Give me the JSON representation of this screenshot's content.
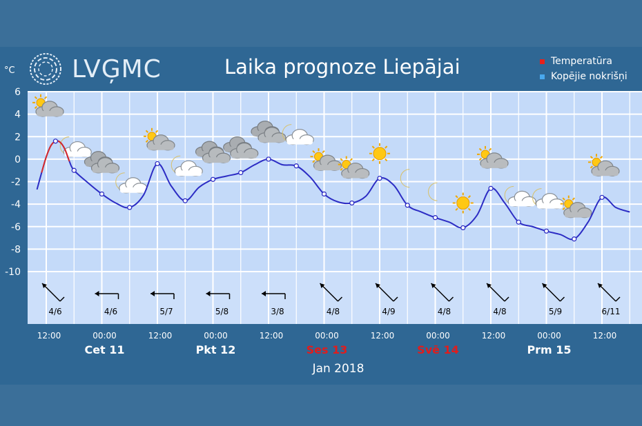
{
  "header": {
    "logo_text": "LVĢMC",
    "title": "Laika prognoze Liepājai",
    "unit": "°C",
    "month_label": "Jan 2018"
  },
  "legend": [
    {
      "label": "Temperatūra",
      "color": "#e8201a"
    },
    {
      "label": "Kopējie nokrišņi",
      "color": "#49a8ee"
    }
  ],
  "colors": {
    "plot_background": "#c4daf9",
    "wind_background": "#ccdffa",
    "temperature_line": "#2c2cc4",
    "temperature_line_past": "#d82a2a",
    "weekend_day_label": "#e01d1d"
  },
  "chart_data": {
    "type": "line",
    "title": "Laika prognoze Liepājai",
    "ylabel": "°C",
    "ylim": [
      -10,
      6
    ],
    "y_ticks": [
      6,
      4,
      2,
      0,
      -2,
      -4,
      -6,
      -8,
      -10
    ],
    "grid": true,
    "legend_placement": "top-right",
    "x_unit": "hours since Jan 10 2018 00:00",
    "x_ticks": [
      {
        "hour": 12,
        "label": "12:00"
      },
      {
        "hour": 24,
        "label": "00:00"
      },
      {
        "hour": 36,
        "label": "12:00"
      },
      {
        "hour": 48,
        "label": "00:00"
      },
      {
        "hour": 60,
        "label": "12:00"
      },
      {
        "hour": 72,
        "label": "00:00"
      },
      {
        "hour": 84,
        "label": "12:00"
      },
      {
        "hour": 96,
        "label": "00:00"
      },
      {
        "hour": 108,
        "label": "12:00"
      },
      {
        "hour": 120,
        "label": "00:00"
      },
      {
        "hour": 132,
        "label": "12:00"
      }
    ],
    "days": [
      {
        "hour": 24,
        "label": "Cet 11",
        "weekend": false
      },
      {
        "hour": 48,
        "label": "Pkt 12",
        "weekend": false
      },
      {
        "hour": 72,
        "label": "Ses 13",
        "weekend": true
      },
      {
        "hour": 96,
        "label": "Svē 14",
        "weekend": true
      },
      {
        "hour": 120,
        "label": "Prm 15",
        "weekend": false
      }
    ],
    "series": [
      {
        "name": "Temperatūra",
        "x": [
          10,
          11,
          12,
          13,
          14,
          15,
          16,
          17,
          18,
          21,
          24,
          27,
          30,
          33,
          36,
          39,
          42,
          45,
          48,
          51,
          54,
          57,
          60,
          63,
          66,
          69,
          72,
          75,
          78,
          81,
          84,
          87,
          90,
          93,
          96,
          99,
          102,
          105,
          108,
          111,
          114,
          117,
          120,
          123,
          126,
          129,
          132,
          135,
          138
        ],
        "y": [
          -2.7,
          -1.2,
          0.2,
          1.2,
          1.6,
          1.5,
          0.9,
          -0.2,
          -1.0,
          -2.1,
          -3.1,
          -3.9,
          -4.3,
          -3.2,
          -0.4,
          -2.4,
          -3.7,
          -2.5,
          -1.8,
          -1.5,
          -1.2,
          -0.5,
          0.0,
          -0.5,
          -0.6,
          -1.6,
          -3.1,
          -3.8,
          -3.9,
          -3.3,
          -1.7,
          -2.3,
          -4.1,
          -4.7,
          -5.2,
          -5.6,
          -6.1,
          -5.0,
          -2.6,
          -3.9,
          -5.6,
          -6.0,
          -6.4,
          -6.7,
          -7.1,
          -5.6,
          -3.4,
          -4.3,
          -4.7
        ],
        "markers_x": [
          14,
          18,
          24,
          30,
          36,
          42,
          48,
          54,
          60,
          66,
          72,
          78,
          84,
          90,
          96,
          102,
          108,
          114,
          120,
          126,
          132
        ],
        "markers_y": [
          1.6,
          -1.0,
          -3.1,
          -4.3,
          -0.4,
          -3.7,
          -1.8,
          -1.2,
          0.0,
          -0.6,
          -3.1,
          -3.9,
          -1.7,
          -4.1,
          -5.2,
          -6.1,
          -2.6,
          -5.6,
          -6.4,
          -7.1,
          -3.4
        ]
      }
    ],
    "weather_icons": [
      {
        "hour": 12,
        "temp": 4.6,
        "icon": "partly-cloudy-icon"
      },
      {
        "hour": 18,
        "temp": 1.0,
        "icon": "night-cloudy-icon"
      },
      {
        "hour": 24,
        "temp": -0.3,
        "icon": "cloud-icon"
      },
      {
        "hour": 30,
        "temp": -2.2,
        "icon": "night-cloudy-icon"
      },
      {
        "hour": 36,
        "temp": 1.6,
        "icon": "partly-cloudy-icon"
      },
      {
        "hour": 42,
        "temp": -0.7,
        "icon": "night-cloudy-icon"
      },
      {
        "hour": 48,
        "temp": 0.6,
        "icon": "cloud-icon"
      },
      {
        "hour": 54,
        "temp": 1.0,
        "icon": "cloud-icon"
      },
      {
        "hour": 60,
        "temp": 2.4,
        "icon": "cloud-icon"
      },
      {
        "hour": 66,
        "temp": 2.1,
        "icon": "night-cloudy-icon"
      },
      {
        "hour": 72,
        "temp": -0.2,
        "icon": "partly-cloudy-icon"
      },
      {
        "hour": 78,
        "temp": -0.9,
        "icon": "partly-cloudy-icon"
      },
      {
        "hour": 84,
        "temp": 0.5,
        "icon": "sun-icon"
      },
      {
        "hour": 90,
        "temp": -1.7,
        "icon": "moon-icon"
      },
      {
        "hour": 96,
        "temp": -2.9,
        "icon": "moon-icon"
      },
      {
        "hour": 102,
        "temp": -3.9,
        "icon": "sun-icon"
      },
      {
        "hour": 108,
        "temp": 0.0,
        "icon": "partly-cloudy-icon"
      },
      {
        "hour": 114,
        "temp": -3.4,
        "icon": "night-cloudy-icon"
      },
      {
        "hour": 120,
        "temp": -3.6,
        "icon": "night-cloudy-icon"
      },
      {
        "hour": 126,
        "temp": -4.4,
        "icon": "partly-cloudy-icon"
      },
      {
        "hour": 132,
        "temp": -0.7,
        "icon": "partly-cloudy-icon"
      }
    ],
    "wind": [
      {
        "hour": 12,
        "label": "4/6",
        "direction": "NW"
      },
      {
        "hour": 24,
        "label": "4/6",
        "direction": "W"
      },
      {
        "hour": 36,
        "label": "5/7",
        "direction": "W"
      },
      {
        "hour": 48,
        "label": "5/8",
        "direction": "W"
      },
      {
        "hour": 60,
        "label": "3/8",
        "direction": "W"
      },
      {
        "hour": 72,
        "label": "4/8",
        "direction": "NW"
      },
      {
        "hour": 84,
        "label": "4/9",
        "direction": "NW"
      },
      {
        "hour": 96,
        "label": "4/8",
        "direction": "NW"
      },
      {
        "hour": 108,
        "label": "4/8",
        "direction": "NW"
      },
      {
        "hour": 120,
        "label": "5/9",
        "direction": "NW"
      },
      {
        "hour": 132,
        "label": "6/11",
        "direction": "NW"
      }
    ]
  }
}
